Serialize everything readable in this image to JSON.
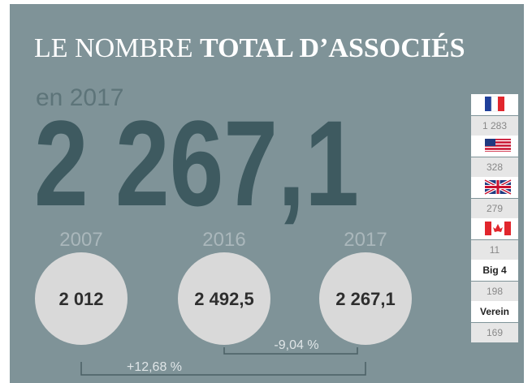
{
  "header": {
    "title_regular": "LE NOMBRE",
    "title_bold": "TOTAL D’ASSOCIÉS",
    "subtitle": "en 2017",
    "total": "2 267,1"
  },
  "years": [
    {
      "year": "2007",
      "value": "2 012"
    },
    {
      "year": "2016",
      "value": "2 492,5"
    },
    {
      "year": "2017",
      "value": "2 267,1"
    }
  ],
  "changes": {
    "short": "-9,04 %",
    "long": "+12,68 %"
  },
  "table": {
    "rows": [
      {
        "value": "1 283"
      },
      {
        "value": "328"
      },
      {
        "value": "279"
      },
      {
        "value": "11"
      },
      {
        "label": "Big 4",
        "value": "198"
      },
      {
        "label": "Verein",
        "value": "169"
      }
    ]
  }
}
